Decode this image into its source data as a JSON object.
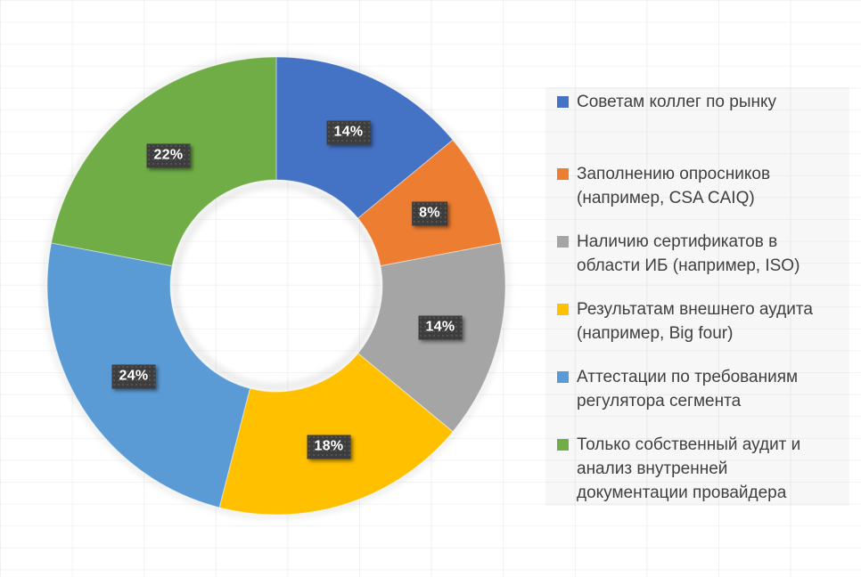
{
  "chart_data": {
    "type": "pie",
    "subtype": "donut",
    "title": "",
    "unit": "%",
    "start_angle_deg": 0,
    "direction": "clockwise",
    "legend_position": "right",
    "grid": "faint background grid",
    "slices": [
      {
        "label": "Советам коллег по рынку",
        "label_wrapped": "Советам коллег по рынку",
        "value": 14,
        "data_label": "14%",
        "color": "#4472C4"
      },
      {
        "label": "Заполнению опросников (например, CSA CAIQ)",
        "label_wrapped": "Заполнению опросников\n(например, CSA CAIQ)",
        "value": 8,
        "data_label": "8%",
        "color": "#ED7D31"
      },
      {
        "label": "Наличию сертификатов в области ИБ (например, ISO)",
        "label_wrapped": "Наличию сертификатов в\nобласти ИБ (например, ISO)",
        "value": 14,
        "data_label": "14%",
        "color": "#A5A5A5"
      },
      {
        "label": "Результатам внешнего аудита (например, Big four)",
        "label_wrapped": "Результатам внешнего аудита\n(например, Big four)",
        "value": 18,
        "data_label": "18%",
        "color": "#FFC000"
      },
      {
        "label": "Аттестации по требованиям регулятора сегмента",
        "label_wrapped": "Аттестации по требованиям\nрегулятора сегмента",
        "value": 24,
        "data_label": "24%",
        "color": "#5B9BD5"
      },
      {
        "label": "Только собственный аудит и анализ внутренней документации провайдера",
        "label_wrapped": "Только собственный аудит и\nанализ внутренней\nдокументации провайдера",
        "value": 22,
        "data_label": "22%",
        "color": "#70AD47"
      }
    ],
    "style": {
      "data_label_box_color": "#3D3D3D",
      "data_label_text_color": "#FFFFFF",
      "legend_text_color": "#404040",
      "legend_background": "#F4F4F6",
      "page_background": "#FFFFFF"
    }
  }
}
